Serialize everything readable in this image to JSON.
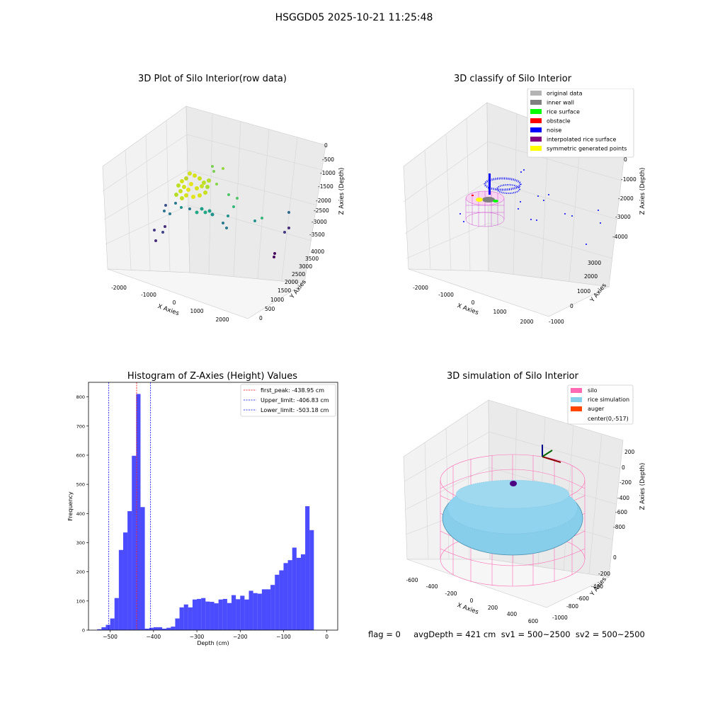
{
  "header": {
    "title": "HSGGD05 2025-10-21 11:25:48"
  },
  "panels": {
    "raw": {
      "title": "3D Plot of Silo Interior(row data)",
      "x_label": "X Axies",
      "y_label": "Y Axies",
      "z_label": "Z Axies (Depth)",
      "x_ticks": [
        "-2000",
        "-1000",
        "0",
        "1000",
        "2000"
      ],
      "y_ticks": [
        "0",
        "500",
        "1000",
        "1500",
        "2000",
        "2500",
        "3000",
        "3500",
        "4000"
      ],
      "z_ticks": [
        "0",
        "-500",
        "-1000",
        "-1500",
        "-2000",
        "-2500",
        "-3000",
        "-3500"
      ]
    },
    "classify": {
      "title": "3D classify of Silo Interior",
      "x_label": "X Axies",
      "y_label": "Y Axies",
      "z_label": "Z Axies (Depth)",
      "x_ticks": [
        "-2000",
        "-1000",
        "0",
        "1000",
        "2000"
      ],
      "y_ticks": [
        "-1000",
        "0",
        "1000",
        "2000",
        "3000"
      ],
      "z_ticks": [
        "0",
        "-1000",
        "-2000",
        "-3000",
        "-4000"
      ],
      "legend": [
        {
          "label": "original data",
          "color": "#b3b3b3"
        },
        {
          "label": "inner wall",
          "color": "#808080"
        },
        {
          "label": "rice surface",
          "color": "#00ff00"
        },
        {
          "label": "obstacle",
          "color": "#ff0000"
        },
        {
          "label": "noise",
          "color": "#0000ff"
        },
        {
          "label": "interpolated rice surface",
          "color": "#800080"
        },
        {
          "label": "symmetric generated points",
          "color": "#ffff00"
        }
      ]
    },
    "simulation": {
      "title": "3D simulation of Silo Interior",
      "x_label": "X Axies",
      "y_label": "Y Axies",
      "z_label": "Z Axies (Depth)",
      "x_ticks": [
        "-600",
        "-400",
        "-200",
        "0",
        "200",
        "400",
        "600"
      ],
      "y_ticks": [
        "0",
        "-200",
        "-400",
        "-600",
        "-800",
        "-1000"
      ],
      "z_ticks": [
        "200",
        "0",
        "-200",
        "-400",
        "-600",
        "-800"
      ],
      "legend": [
        {
          "label": "silo",
          "color": "#ff69b4"
        },
        {
          "label": "rice simulation",
          "color": "#87ceeb"
        },
        {
          "label": "auger",
          "color": "#ff4500"
        },
        {
          "label": "center(0,-517)",
          "color": ""
        }
      ]
    }
  },
  "status": {
    "text": "flag = 0     avgDepth = 421 cm  sv1 = 500~2500  sv2 = 500~2500"
  },
  "chart_data": [
    {
      "type": "bar",
      "title": "Histogram of Z-Axies (Height) Values",
      "xlabel": "Depth (cm)",
      "ylabel": "Frequency",
      "xlim": [
        -550,
        25
      ],
      "ylim": [
        0,
        850
      ],
      "bin_width": 10,
      "bar_color": "#0000ff",
      "x_ticks": [
        -500,
        -400,
        -300,
        -200,
        -100,
        0
      ],
      "y_ticks": [
        0,
        100,
        200,
        300,
        400,
        500,
        600,
        700,
        800
      ],
      "bin_starts": [
        -530,
        -520,
        -510,
        -500,
        -490,
        -480,
        -470,
        -460,
        -450,
        -440,
        -430,
        -420,
        -410,
        -400,
        -390,
        -380,
        -370,
        -360,
        -350,
        -340,
        -330,
        -320,
        -310,
        -300,
        -290,
        -280,
        -270,
        -260,
        -250,
        -240,
        -230,
        -220,
        -210,
        -200,
        -190,
        -180,
        -170,
        -160,
        -150,
        -140,
        -130,
        -120,
        -110,
        -100,
        -90,
        -80,
        -70,
        -60,
        -50,
        -40,
        -30,
        -20,
        -10
      ],
      "values": [
        3,
        10,
        18,
        40,
        110,
        275,
        335,
        408,
        598,
        810,
        422,
        5,
        8,
        10,
        10,
        5,
        8,
        12,
        40,
        78,
        88,
        78,
        105,
        107,
        110,
        98,
        97,
        92,
        105,
        107,
        93,
        120,
        106,
        118,
        105,
        135,
        127,
        125,
        140,
        140,
        155,
        190,
        205,
        230,
        240,
        283,
        248,
        260,
        425,
        343,
        0,
        0,
        0
      ],
      "lines": [
        {
          "label": "first_peak: -438.95 cm",
          "x": -438.95,
          "color": "#ff0000"
        },
        {
          "label": "Upper_limit: -406.83 cm",
          "x": -406.83,
          "color": "#0000ff"
        },
        {
          "label": "Lower_limit: -503.18 cm",
          "x": -503.18,
          "color": "#0000ff"
        }
      ]
    }
  ]
}
